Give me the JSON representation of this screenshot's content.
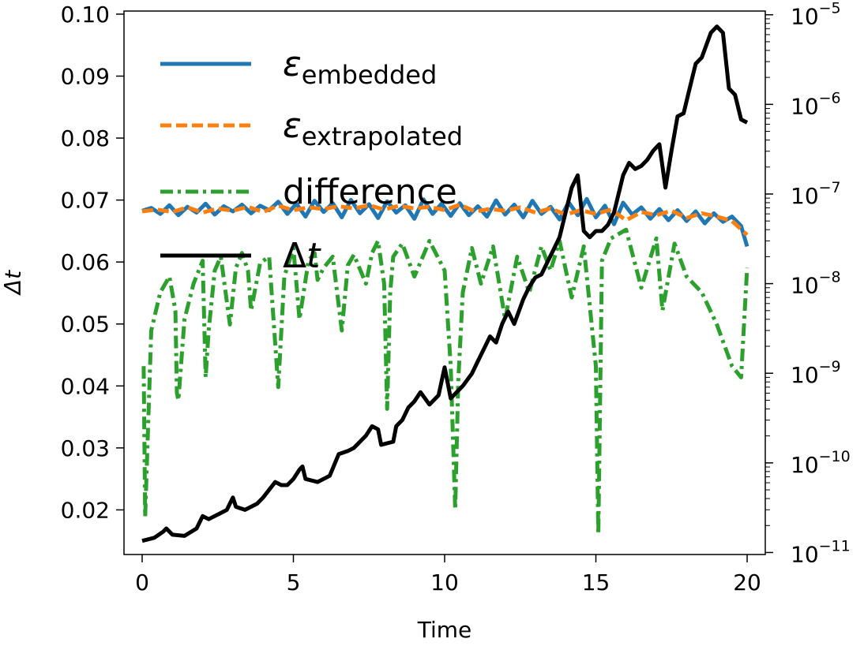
{
  "chart_data": {
    "type": "line",
    "xlabel": "Time",
    "ylabel": "Δt",
    "xlim": [
      -0.6,
      20.6
    ],
    "ylim": [
      0.0128,
      0.1005
    ],
    "y2_scale": "log",
    "y2lim": [
      9.5e-12,
      1.1e-05
    ],
    "x_ticks": [
      0,
      5,
      10,
      15,
      20
    ],
    "x_tick_labels": [
      "0",
      "5",
      "10",
      "15",
      "20"
    ],
    "y_ticks": [
      0.02,
      0.03,
      0.04,
      0.05,
      0.06,
      0.07,
      0.08,
      0.09,
      0.1
    ],
    "y_tick_labels": [
      "0.02",
      "0.03",
      "0.04",
      "0.05",
      "0.06",
      "0.07",
      "0.08",
      "0.09",
      "0.10"
    ],
    "y2_ticks": [
      1e-11,
      1e-10,
      1e-09,
      1e-08,
      1e-07,
      1e-06,
      1e-05
    ],
    "y2_tick_labels": [
      {
        "base": "10",
        "exp": "−11"
      },
      {
        "base": "10",
        "exp": "−10"
      },
      {
        "base": "10",
        "exp": "−9"
      },
      {
        "base": "10",
        "exp": "−8"
      },
      {
        "base": "10",
        "exp": "−7"
      },
      {
        "base": "10",
        "exp": "−6"
      },
      {
        "base": "10",
        "exp": "−5"
      }
    ],
    "legend_position": "upper-left",
    "series": [
      {
        "name": "ε_embedded",
        "legend_main": "ε",
        "legend_sub": "embedded",
        "axis": "right",
        "color": "#1f77b4",
        "dash": "solid",
        "x": [
          0.0,
          0.3,
          0.6,
          0.9,
          1.2,
          1.5,
          1.8,
          2.1,
          2.4,
          2.7,
          3.0,
          3.3,
          3.6,
          3.9,
          4.2,
          4.5,
          4.8,
          5.1,
          5.4,
          5.7,
          6.0,
          6.3,
          6.6,
          6.9,
          7.2,
          7.5,
          7.8,
          8.1,
          8.4,
          8.7,
          9.0,
          9.3,
          9.6,
          9.9,
          10.2,
          10.5,
          10.8,
          11.1,
          11.4,
          11.7,
          12.0,
          12.3,
          12.6,
          12.9,
          13.2,
          13.5,
          13.8,
          14.1,
          14.4,
          14.7,
          15.0,
          15.3,
          15.6,
          15.9,
          16.2,
          16.5,
          16.8,
          17.1,
          17.4,
          17.7,
          18.0,
          18.3,
          18.6,
          18.9,
          19.2,
          19.5,
          19.8,
          20.0
        ],
        "y": [
          6.5e-08,
          7e-08,
          6e-08,
          7.5e-08,
          5.8e-08,
          7.2e-08,
          6.2e-08,
          7.8e-08,
          5.9e-08,
          7.3e-08,
          6.4e-08,
          7.6e-08,
          6.1e-08,
          7.4e-08,
          6.6e-08,
          8.2e-08,
          6e-08,
          7.8e-08,
          5.6e-08,
          8.4e-08,
          6.3e-08,
          7.9e-08,
          5.5e-08,
          8.6e-08,
          6.1e-08,
          7.7e-08,
          5.4e-08,
          8.3e-08,
          6.2e-08,
          7.5e-08,
          5.3e-08,
          8.7e-08,
          6e-08,
          7.8e-08,
          5.7e-08,
          7.9e-08,
          5.8e-08,
          7.3e-08,
          5.6e-08,
          8.5e-08,
          5.9e-08,
          7.6e-08,
          5.5e-08,
          8.4e-08,
          6e-08,
          7.2e-08,
          5.2e-08,
          8.1e-08,
          5.8e-08,
          8.8e-08,
          5.5e-08,
          7.4e-08,
          4.6e-08,
          8e-08,
          5.9e-08,
          7.1e-08,
          5.3e-08,
          6.8e-08,
          5.1e-08,
          6.6e-08,
          5e-08,
          6.4e-08,
          4.7e-08,
          6.1e-08,
          4.9e-08,
          5.6e-08,
          4.4e-08,
          2.6e-08
        ]
      },
      {
        "name": "ε_extrapolated",
        "legend_main": "ε",
        "legend_sub": "extrapolated",
        "axis": "right",
        "color": "#ff7f0e",
        "dash": "dashed",
        "x": [
          0.0,
          0.5,
          1.0,
          1.5,
          2.0,
          2.5,
          3.0,
          3.5,
          4.0,
          4.5,
          5.0,
          5.5,
          6.0,
          6.5,
          7.0,
          7.5,
          8.0,
          8.5,
          9.0,
          9.5,
          10.0,
          10.5,
          11.0,
          11.5,
          12.0,
          12.5,
          13.0,
          13.5,
          14.0,
          14.5,
          15.0,
          15.5,
          16.0,
          16.5,
          17.0,
          17.5,
          18.0,
          18.5,
          19.0,
          19.5,
          20.0
        ],
        "y": [
          6.4e-08,
          6.7e-08,
          6.3e-08,
          7.1e-08,
          6.2e-08,
          6.9e-08,
          6.5e-08,
          7.2e-08,
          6.3e-08,
          7.4e-08,
          6.6e-08,
          7.1e-08,
          6.8e-08,
          7.3e-08,
          6.9e-08,
          7.5e-08,
          6.7e-08,
          7.4e-08,
          6.9e-08,
          7.2e-08,
          6.6e-08,
          7.6e-08,
          6.4e-08,
          6.8e-08,
          6.5e-08,
          7.1e-08,
          6.2e-08,
          6.9e-08,
          5.9e-08,
          6.6e-08,
          6e-08,
          6.7e-08,
          5.1e-08,
          6.3e-08,
          5.8e-08,
          6.5e-08,
          5.4e-08,
          6.1e-08,
          5.6e-08,
          5e-08,
          3.5e-08
        ]
      },
      {
        "name": "difference",
        "legend_main": "difference",
        "legend_sub": "",
        "axis": "right",
        "color": "#2ca02c",
        "dash": "dashdot",
        "x": [
          0.05,
          0.1,
          0.3,
          0.6,
          0.9,
          1.1,
          1.15,
          1.2,
          1.4,
          1.7,
          2.0,
          2.1,
          2.2,
          2.4,
          2.6,
          2.9,
          3.1,
          3.3,
          3.5,
          3.6,
          3.9,
          4.2,
          4.5,
          4.7,
          5.0,
          5.2,
          5.5,
          5.7,
          5.8,
          6.0,
          6.3,
          6.6,
          6.8,
          7.0,
          7.4,
          7.6,
          7.8,
          8.0,
          8.1,
          8.2,
          8.3,
          8.6,
          9.0,
          9.5,
          10.0,
          10.2,
          10.35,
          10.45,
          10.6,
          10.9,
          11.2,
          11.6,
          12.0,
          12.4,
          12.8,
          13.2,
          13.5,
          13.8,
          14.2,
          14.6,
          15.0,
          15.08,
          15.2,
          15.5,
          16.0,
          16.5,
          17.0,
          17.2,
          17.6,
          18.0,
          18.5,
          19.0,
          19.5,
          19.8,
          20.0
        ],
        "y": [
          1.2e-09,
          2.5e-11,
          3e-09,
          8e-09,
          1.2e-08,
          5e-09,
          6e-10,
          5e-10,
          4e-09,
          1e-08,
          1.8e-08,
          9e-10,
          3e-09,
          1.4e-08,
          2e-08,
          3.5e-09,
          1.5e-08,
          2.2e-08,
          1.4e-08,
          5e-09,
          1.7e-08,
          2e-08,
          7e-10,
          1.2e-08,
          2.5e-08,
          4e-09,
          1.8e-08,
          2.2e-08,
          1.1e-08,
          1.5e-08,
          2e-08,
          3e-09,
          1.6e-08,
          2.1e-08,
          1e-08,
          2.2e-08,
          3e-08,
          1e-08,
          4e-10,
          8e-09,
          2e-08,
          2.8e-08,
          1.2e-08,
          3e-08,
          1.4e-08,
          1.2e-09,
          3e-11,
          8e-10,
          8e-09,
          2.5e-08,
          1e-08,
          2.6e-08,
          4e-09,
          2e-08,
          8e-09,
          2.6e-08,
          1.4e-08,
          3e-08,
          7e-09,
          2.6e-08,
          1.2e-09,
          1.6e-11,
          1.8e-08,
          3.2e-08,
          4e-08,
          9e-09,
          3.2e-08,
          5e-09,
          2.8e-08,
          1.2e-08,
          8e-09,
          3.5e-09,
          1.2e-09,
          9e-10,
          1.5e-08
        ]
      },
      {
        "name": "Δt",
        "legend_main": "Δt",
        "legend_sub": "",
        "axis": "left",
        "color": "#000000",
        "dash": "solid",
        "x": [
          0.0,
          0.4,
          0.7,
          0.8,
          1.0,
          1.4,
          1.8,
          2.0,
          2.2,
          2.6,
          2.8,
          3.0,
          3.1,
          3.4,
          3.8,
          4.0,
          4.4,
          4.6,
          4.8,
          5.0,
          5.2,
          5.3,
          5.4,
          5.8,
          6.2,
          6.5,
          6.8,
          7.0,
          7.2,
          7.4,
          7.6,
          7.8,
          7.9,
          8.3,
          8.4,
          8.6,
          8.8,
          9.0,
          9.2,
          9.5,
          9.8,
          10.0,
          10.2,
          10.3,
          10.6,
          10.9,
          11.1,
          11.3,
          11.5,
          11.7,
          11.9,
          12.1,
          12.3,
          12.6,
          12.8,
          13.0,
          13.2,
          13.4,
          13.6,
          13.8,
          14.0,
          14.2,
          14.4,
          14.6,
          14.8,
          15.0,
          15.2,
          15.4,
          15.6,
          15.8,
          15.9,
          16.1,
          16.3,
          16.5,
          16.7,
          16.9,
          17.1,
          17.3,
          17.5,
          17.7,
          17.9,
          18.1,
          18.3,
          18.5,
          18.8,
          19.0,
          19.2,
          19.4,
          19.6,
          19.8,
          20.0
        ],
        "y": [
          0.015,
          0.0155,
          0.0165,
          0.017,
          0.016,
          0.0158,
          0.017,
          0.019,
          0.0185,
          0.0195,
          0.02,
          0.022,
          0.0205,
          0.02,
          0.021,
          0.022,
          0.0245,
          0.024,
          0.024,
          0.025,
          0.0265,
          0.027,
          0.025,
          0.0245,
          0.0255,
          0.029,
          0.0295,
          0.03,
          0.031,
          0.032,
          0.0335,
          0.033,
          0.0305,
          0.031,
          0.0335,
          0.0345,
          0.0365,
          0.0375,
          0.039,
          0.037,
          0.0385,
          0.043,
          0.038,
          0.0385,
          0.04,
          0.042,
          0.044,
          0.046,
          0.048,
          0.047,
          0.05,
          0.052,
          0.05,
          0.054,
          0.056,
          0.0575,
          0.058,
          0.06,
          0.062,
          0.064,
          0.068,
          0.072,
          0.074,
          0.065,
          0.064,
          0.065,
          0.065,
          0.066,
          0.068,
          0.072,
          0.074,
          0.076,
          0.075,
          0.0755,
          0.0765,
          0.078,
          0.079,
          0.072,
          0.078,
          0.0835,
          0.084,
          0.088,
          0.092,
          0.093,
          0.097,
          0.098,
          0.097,
          0.088,
          0.087,
          0.083,
          0.0825
        ]
      }
    ]
  }
}
